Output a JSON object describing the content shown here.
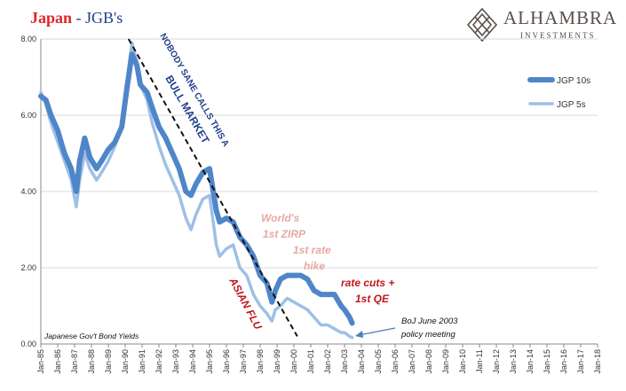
{
  "title": {
    "part1": "Japan",
    "part2": " - JGB's"
  },
  "logo": {
    "name": "ALHAMBRA",
    "sub": "INVESTMENTS",
    "icon": "diamond-lattice-icon"
  },
  "colors": {
    "jgb10": "#4f86c9",
    "jgb5": "#9ec0e6",
    "trend": "#111111",
    "title_red": "#e0262a",
    "title_blue": "#1f3d8a",
    "annotation_dark": "#1f3d8a",
    "annotation_red": "#c0171d",
    "annotation_pink": "#e7a8a4"
  },
  "chart_data": {
    "type": "line",
    "ylim": [
      0,
      8
    ],
    "yticks": [
      "0.00",
      "2.00",
      "4.00",
      "6.00",
      "8.00"
    ],
    "categories": [
      "Jan-85",
      "Jan-86",
      "Jan-87",
      "Jan-88",
      "Jan-89",
      "Jan-90",
      "Jan-91",
      "Jan-92",
      "Jan-93",
      "Jan-94",
      "Jan-95",
      "Jan-96",
      "Jan-97",
      "Jan-98",
      "Jan-99",
      "Jan-00",
      "Jan-01",
      "Jan-02",
      "Jan-03",
      "Jan-04",
      "Jan-05",
      "Jan-06",
      "Jan-07",
      "Jan-08",
      "Jan-09",
      "Jan-10",
      "Jan-11",
      "Jan-12",
      "Jan-13",
      "Jan-14",
      "Jan-15",
      "Jan-16",
      "Jan-17",
      "Jan-18"
    ],
    "legend_position": "top-right",
    "grid": true,
    "series": [
      {
        "name": "JGP 10s",
        "x": [
          1985.0,
          1985.3,
          1985.6,
          1986.0,
          1986.4,
          1986.8,
          1987.1,
          1987.3,
          1987.6,
          1987.9,
          1988.3,
          1988.6,
          1989.0,
          1989.4,
          1989.8,
          1990.1,
          1990.4,
          1990.7,
          1990.9,
          1991.3,
          1991.6,
          1992.0,
          1992.4,
          1992.8,
          1993.2,
          1993.6,
          1993.9,
          1994.2,
          1994.6,
          1995.0,
          1995.4,
          1995.6,
          1996.0,
          1996.4,
          1996.8,
          1997.2,
          1997.6,
          1998.0,
          1998.4,
          1998.7,
          1998.9,
          1999.2,
          1999.6,
          2000.0,
          2000.4,
          2000.8,
          2001.2,
          2001.6,
          2002.0,
          2002.4,
          2002.8,
          2003.0,
          2003.3,
          2003.45
        ],
        "values": [
          6.5,
          6.4,
          6.0,
          5.6,
          5.0,
          4.6,
          4.0,
          4.8,
          5.4,
          4.9,
          4.6,
          4.8,
          5.1,
          5.3,
          5.7,
          6.7,
          7.6,
          7.3,
          6.8,
          6.6,
          6.2,
          5.7,
          5.4,
          5.0,
          4.6,
          4.0,
          3.9,
          4.2,
          4.5,
          4.6,
          3.5,
          3.2,
          3.3,
          3.2,
          2.8,
          2.6,
          2.3,
          1.8,
          1.6,
          1.1,
          1.4,
          1.7,
          1.8,
          1.8,
          1.8,
          1.7,
          1.4,
          1.3,
          1.3,
          1.3,
          1.0,
          0.9,
          0.7,
          0.55
        ]
      },
      {
        "name": "JGP 5s",
        "x": [
          1985.0,
          1985.3,
          1985.6,
          1986.0,
          1986.4,
          1986.8,
          1987.1,
          1987.3,
          1987.6,
          1987.9,
          1988.3,
          1988.6,
          1989.0,
          1989.4,
          1989.8,
          1990.1,
          1990.4,
          1990.7,
          1990.9,
          1991.3,
          1991.6,
          1992.0,
          1992.4,
          1992.8,
          1993.2,
          1993.6,
          1993.9,
          1994.2,
          1994.6,
          1995.0,
          1995.4,
          1995.6,
          1996.0,
          1996.4,
          1996.8,
          1997.2,
          1997.6,
          1998.0,
          1998.4,
          1998.7,
          1998.9,
          1999.2,
          1999.6,
          2000.0,
          2000.4,
          2000.8,
          2001.2,
          2001.6,
          2002.0,
          2002.4,
          2002.8,
          2003.0,
          2003.3,
          2003.45
        ],
        "values": [
          6.6,
          6.3,
          5.8,
          5.3,
          4.8,
          4.3,
          3.6,
          4.3,
          5.0,
          4.6,
          4.3,
          4.5,
          4.8,
          5.2,
          5.8,
          6.9,
          7.9,
          7.4,
          6.8,
          6.4,
          5.8,
          5.2,
          4.7,
          4.3,
          3.9,
          3.3,
          3.0,
          3.4,
          3.8,
          3.9,
          2.6,
          2.3,
          2.5,
          2.6,
          2.0,
          1.8,
          1.3,
          1.0,
          0.8,
          0.6,
          0.9,
          1.0,
          1.2,
          1.1,
          1.0,
          0.9,
          0.7,
          0.5,
          0.5,
          0.4,
          0.3,
          0.3,
          0.2,
          0.17
        ]
      }
    ],
    "annotations": [
      {
        "text": "NOBODY SANE CALLS THIS A",
        "color": "dark"
      },
      {
        "text": "BULL MARKET",
        "color": "dark"
      },
      {
        "text": "World's",
        "color": "pink"
      },
      {
        "text": "1st ZIRP",
        "color": "pink"
      },
      {
        "text": "1st rate",
        "color": "pink"
      },
      {
        "text": "hike",
        "color": "pink"
      },
      {
        "text": "rate cuts +",
        "color": "red"
      },
      {
        "text": "1st QE",
        "color": "red"
      },
      {
        "text": "ASIAN FLU",
        "color": "red"
      },
      {
        "text": "BoJ June 2003",
        "color": "black"
      },
      {
        "text": "policy meeting",
        "color": "black"
      },
      {
        "text": "Japanese Gov't Bond Yields",
        "color": "black"
      }
    ]
  }
}
